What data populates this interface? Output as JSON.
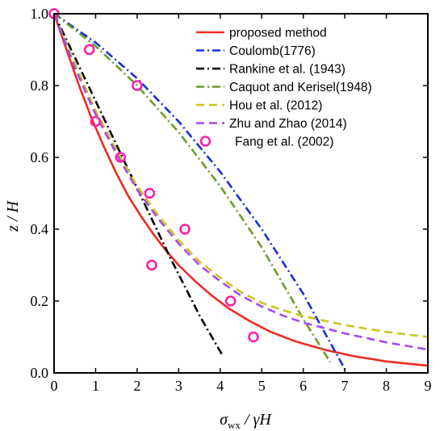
{
  "chart_data": {
    "type": "line",
    "title": "",
    "xlabel": "σ_wx / γH",
    "xlabel_parts": {
      "sigma": "σ",
      "sub": "wx",
      "rest": " / γH"
    },
    "ylabel": "z / H",
    "xlim": [
      0,
      9
    ],
    "ylim": [
      0,
      1.0
    ],
    "x_ticks": [
      "0",
      "1",
      "2",
      "3",
      "4",
      "5",
      "6",
      "7",
      "8",
      "9"
    ],
    "y_ticks": [
      "0.0",
      "0.2",
      "0.4",
      "0.6",
      "0.8",
      "1.0"
    ],
    "grid": false,
    "legend_position": "top-right",
    "series": [
      {
        "name": "proposed method",
        "color": "#ee2a24",
        "dash": "solid",
        "x": [
          0,
          0.3,
          0.6,
          0.9,
          1.2,
          1.5,
          1.8,
          2.1,
          2.4,
          2.7,
          3.0,
          3.4,
          3.8,
          4.2,
          4.7,
          5.2,
          5.8,
          6.5,
          7.2,
          8.0,
          9.0
        ],
        "y": [
          1.0,
          0.9,
          0.8,
          0.71,
          0.63,
          0.555,
          0.49,
          0.435,
          0.385,
          0.34,
          0.3,
          0.255,
          0.215,
          0.18,
          0.145,
          0.115,
          0.088,
          0.065,
          0.047,
          0.032,
          0.02
        ]
      },
      {
        "name": "Coulomb(1776)",
        "color": "#1a2fd4",
        "dash": "dashdot",
        "x": [
          0,
          1,
          2,
          3,
          4,
          5,
          6,
          7.05
        ],
        "y": [
          1.0,
          0.92,
          0.82,
          0.7,
          0.56,
          0.4,
          0.22,
          0.0
        ]
      },
      {
        "name": "Rankine et al. (1943)",
        "color": "#000000",
        "dash": "dashdot",
        "x": [
          0,
          0.7,
          1.4,
          2.1,
          2.8,
          3.5,
          4.05
        ],
        "y": [
          1.0,
          0.83,
          0.66,
          0.49,
          0.32,
          0.16,
          0.05
        ]
      },
      {
        "name": "Caquot and Kerisel(1948)",
        "color": "#6b9b2a",
        "dash": "dashdot",
        "x": [
          0,
          1,
          2,
          3,
          4,
          5,
          6,
          6.65
        ],
        "y": [
          1.0,
          0.91,
          0.8,
          0.67,
          0.52,
          0.35,
          0.15,
          0.03
        ]
      },
      {
        "name": "Hou et al. (2012)",
        "color": "#c9c41e",
        "dash": "dashed",
        "x": [
          0,
          0.5,
          1,
          1.5,
          2,
          2.5,
          3,
          3.5,
          4,
          4.5,
          5,
          5.5,
          6,
          7,
          8,
          9
        ],
        "y": [
          1.0,
          0.86,
          0.73,
          0.62,
          0.52,
          0.44,
          0.37,
          0.31,
          0.265,
          0.225,
          0.195,
          0.175,
          0.158,
          0.133,
          0.114,
          0.1
        ]
      },
      {
        "name": "Zhu and Zhao (2014)",
        "color": "#a24af0",
        "dash": "dashed",
        "x": [
          0,
          0.5,
          1,
          1.5,
          2,
          2.5,
          3,
          3.5,
          4,
          4.5,
          5,
          5.5,
          6,
          7,
          8,
          9
        ],
        "y": [
          1.0,
          0.85,
          0.72,
          0.61,
          0.51,
          0.43,
          0.36,
          0.3,
          0.255,
          0.215,
          0.185,
          0.16,
          0.14,
          0.11,
          0.085,
          0.065
        ]
      },
      {
        "name": "Fang et al. (2002)",
        "color": "#ff1fa8",
        "type": "scatter",
        "x": [
          0,
          0.85,
          1.0,
          1.6,
          2.0,
          2.3,
          2.35,
          3.15,
          4.25,
          4.8
        ],
        "y": [
          1.0,
          0.9,
          0.7,
          0.6,
          0.8,
          0.5,
          0.3,
          0.4,
          0.2,
          0.1
        ]
      }
    ]
  }
}
